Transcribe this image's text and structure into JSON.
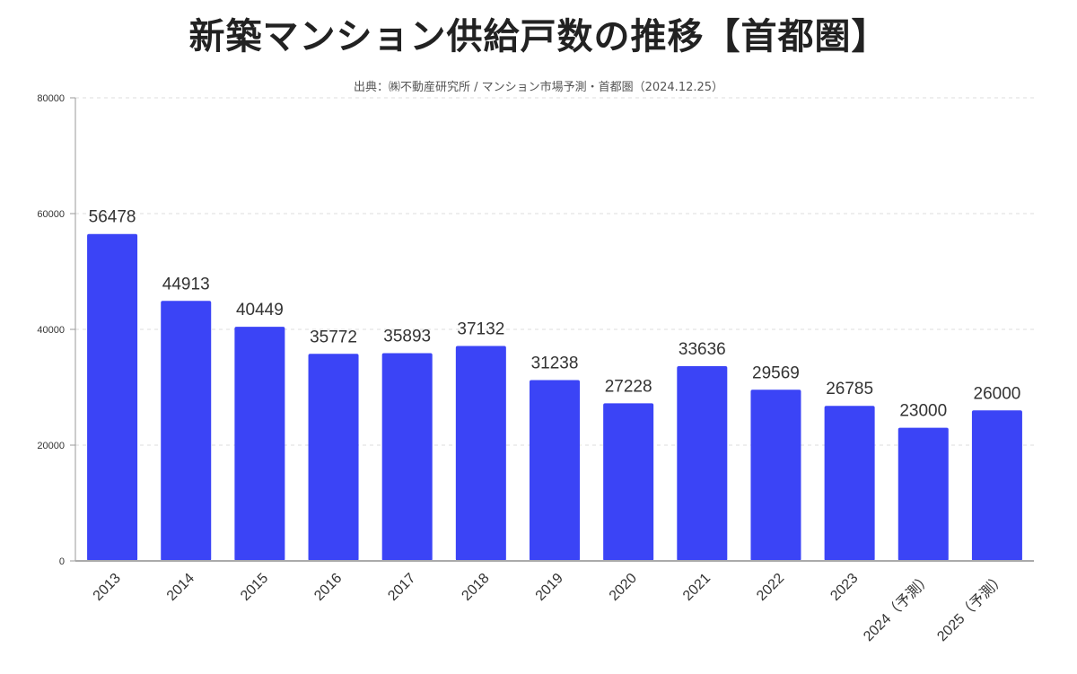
{
  "chart_data": {
    "type": "bar",
    "title": "新築マンション供給戸数の推移【首都圏】",
    "subtitle": "出典：㈱不動産研究所 / マンション市場予測・首都圏（2024.12.25）",
    "categories": [
      "2013",
      "2014",
      "2015",
      "2016",
      "2017",
      "2018",
      "2019",
      "2020",
      "2021",
      "2022",
      "2023",
      "2024（予測）",
      "2025（予測）"
    ],
    "values": [
      56478,
      44913,
      40449,
      35772,
      35893,
      37132,
      31238,
      27228,
      33636,
      29569,
      26785,
      23000,
      26000
    ],
    "ylim": [
      0,
      80000
    ],
    "yticks": [
      0,
      20000,
      40000,
      60000,
      80000
    ],
    "xlabel": "",
    "ylabel": "",
    "grid": true,
    "bar_color": "#3b44f6"
  }
}
